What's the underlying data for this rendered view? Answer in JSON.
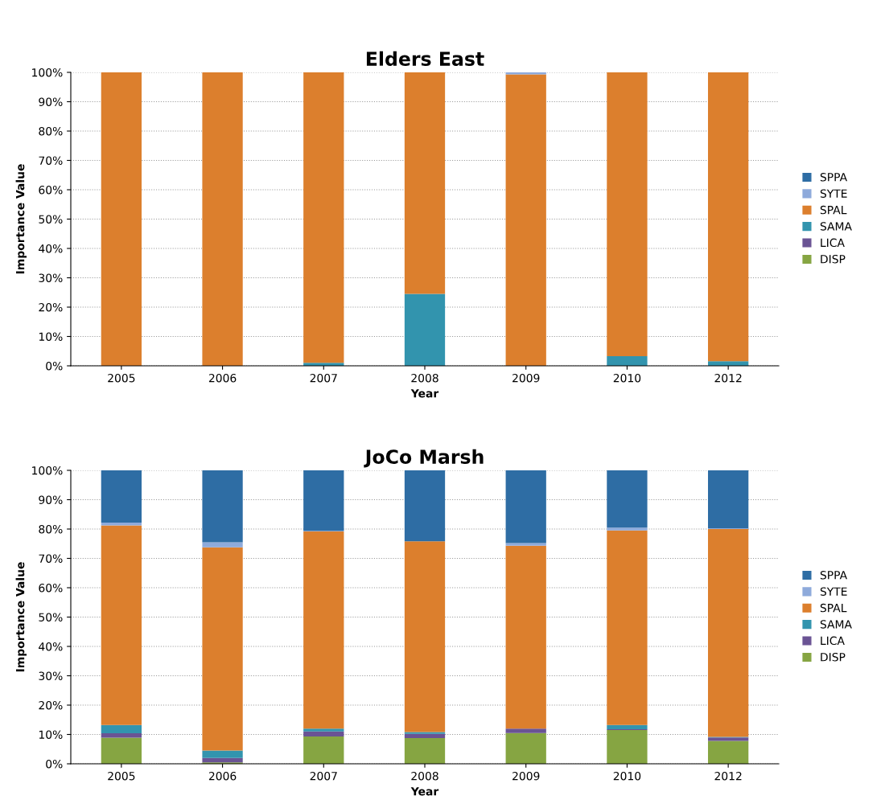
{
  "chart_data": [
    {
      "type": "bar",
      "stacked": true,
      "title": "Elders East",
      "xlabel": "Year",
      "ylabel": "Importance Value",
      "categories": [
        "2005",
        "2006",
        "2007",
        "2008",
        "2009",
        "2010",
        "2012"
      ],
      "ylim": [
        0,
        100
      ],
      "yticks": [
        {
          "value": 0,
          "label": "0%"
        },
        {
          "value": 10,
          "label": "10%"
        },
        {
          "value": 20,
          "label": "20%"
        },
        {
          "value": 30,
          "label": "30%"
        },
        {
          "value": 40,
          "label": "40%"
        },
        {
          "value": 50,
          "label": "50%"
        },
        {
          "value": 60,
          "label": "60%"
        },
        {
          "value": 70,
          "label": "70%"
        },
        {
          "value": 80,
          "label": "80%"
        },
        {
          "value": 90,
          "label": "90%"
        },
        {
          "value": 100,
          "label": "100%"
        }
      ],
      "grid": "y",
      "legend": "right",
      "series": [
        {
          "name": "DISP",
          "color": "#86a542",
          "values": [
            0,
            0,
            0,
            0,
            0,
            0,
            null
          ]
        },
        {
          "name": "LICA",
          "color": "#6a5394",
          "values": [
            0,
            0,
            0,
            0,
            0,
            0,
            0
          ]
        },
        {
          "name": "SAMA",
          "color": "#3294ae",
          "values": [
            0,
            0,
            1.0,
            24.5,
            0,
            3.3,
            1.6
          ]
        },
        {
          "name": "SPAL",
          "color": "#dc7f2d",
          "values": [
            100,
            100,
            99.0,
            75.5,
            99.3,
            96.7,
            98.4
          ]
        },
        {
          "name": "SYTE",
          "color": "#8eaadb",
          "values": [
            0,
            0,
            0,
            0,
            0.7,
            0,
            0
          ]
        },
        {
          "name": "SPPA",
          "color": "#2e6da4",
          "values": [
            0,
            0,
            0,
            0,
            0,
            0,
            0
          ]
        }
      ]
    },
    {
      "type": "bar",
      "stacked": true,
      "title": "JoCo Marsh",
      "xlabel": "Year",
      "ylabel": "Importance Value",
      "categories": [
        "2005",
        "2006",
        "2007",
        "2008",
        "2009",
        "2010",
        "2012"
      ],
      "ylim": [
        0,
        100
      ],
      "yticks": [
        {
          "value": 0,
          "label": "0%"
        },
        {
          "value": 10,
          "label": "10%"
        },
        {
          "value": 20,
          "label": "20%"
        },
        {
          "value": 30,
          "label": "30%"
        },
        {
          "value": 40,
          "label": "40%"
        },
        {
          "value": 50,
          "label": "50%"
        },
        {
          "value": 60,
          "label": "60%"
        },
        {
          "value": 70,
          "label": "70%"
        },
        {
          "value": 80,
          "label": "80%"
        },
        {
          "value": 90,
          "label": "90%"
        },
        {
          "value": 100,
          "label": "100%"
        }
      ],
      "grid": "y",
      "legend": "right",
      "series": [
        {
          "name": "DISP",
          "color": "#86a542",
          "values": [
            8.9,
            0.5,
            9.3,
            8.8,
            10.5,
            11.5,
            7.8
          ]
        },
        {
          "name": "LICA",
          "color": "#6a5394",
          "values": [
            1.5,
            1.5,
            1.7,
            1.4,
            1.5,
            0.3,
            1.2
          ]
        },
        {
          "name": "SAMA",
          "color": "#3294ae",
          "values": [
            2.8,
            2.5,
            1.0,
            0.6,
            0,
            1.4,
            0.2
          ]
        },
        {
          "name": "SPAL",
          "color": "#dc7f2d",
          "values": [
            68.0,
            69.3,
            67.2,
            65.0,
            62.3,
            66.3,
            70.8
          ]
        },
        {
          "name": "SYTE",
          "color": "#8eaadb",
          "values": [
            1.0,
            1.7,
            0.2,
            null,
            0.9,
            1.0,
            0.3
          ]
        },
        {
          "name": "SPPA",
          "color": "#2e6da4",
          "values": [
            17.8,
            24.5,
            20.6,
            24.2,
            24.8,
            19.5,
            19.7
          ]
        }
      ]
    }
  ]
}
